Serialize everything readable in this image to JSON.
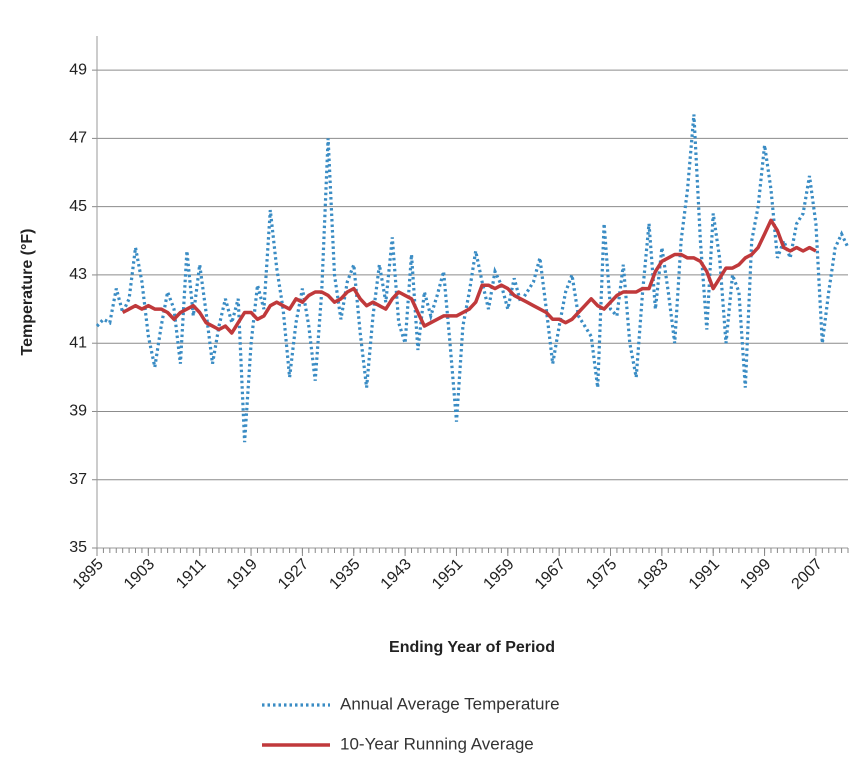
{
  "chart_data": {
    "type": "line",
    "y_label": "Temperature (°F)",
    "x_label": "Ending Year of Period",
    "x": [
      1895,
      1896,
      1897,
      1898,
      1899,
      1900,
      1901,
      1902,
      1903,
      1904,
      1905,
      1906,
      1907,
      1908,
      1909,
      1910,
      1911,
      1912,
      1913,
      1914,
      1915,
      1916,
      1917,
      1918,
      1919,
      1920,
      1921,
      1922,
      1923,
      1924,
      1925,
      1926,
      1927,
      1928,
      1929,
      1930,
      1931,
      1932,
      1933,
      1934,
      1935,
      1936,
      1937,
      1938,
      1939,
      1940,
      1941,
      1942,
      1943,
      1944,
      1945,
      1946,
      1947,
      1948,
      1949,
      1950,
      1951,
      1952,
      1953,
      1954,
      1955,
      1956,
      1957,
      1958,
      1959,
      1960,
      1961,
      1962,
      1963,
      1964,
      1965,
      1966,
      1967,
      1968,
      1969,
      1970,
      1971,
      1972,
      1973,
      1974,
      1975,
      1976,
      1977,
      1978,
      1979,
      1980,
      1981,
      1982,
      1983,
      1984,
      1985,
      1986,
      1987,
      1988,
      1989,
      1990,
      1991,
      1992,
      1993,
      1994,
      1995,
      1996,
      1997,
      1998,
      1999,
      2000,
      2001,
      2002,
      2003,
      2004,
      2005,
      2006,
      2007,
      2008,
      2009,
      2010,
      2011,
      2012
    ],
    "series": [
      {
        "name": "Annual Average Temperature",
        "color": "#3a8cc4",
        "style": "dotted",
        "values": [
          41.5,
          41.7,
          41.6,
          42.6,
          41.9,
          42.3,
          43.8,
          42.8,
          41.2,
          40.3,
          41.5,
          42.5,
          42.0,
          40.4,
          43.7,
          41.8,
          43.3,
          41.9,
          40.4,
          41.5,
          42.3,
          41.6,
          42.3,
          38.1,
          41.0,
          42.7,
          42.0,
          44.9,
          43.2,
          42.0,
          40.0,
          41.6,
          42.6,
          41.5,
          39.9,
          42.5,
          47.0,
          43.0,
          41.7,
          42.8,
          43.3,
          41.3,
          39.7,
          41.8,
          43.3,
          42.2,
          44.1,
          41.6,
          41.0,
          43.6,
          40.8,
          42.5,
          41.8,
          42.4,
          43.1,
          41.0,
          38.7,
          41.5,
          42.5,
          43.7,
          42.8,
          42.0,
          43.1,
          42.7,
          42.0,
          42.9,
          42.2,
          42.5,
          42.8,
          43.5,
          42.0,
          40.4,
          41.5,
          42.5,
          43.0,
          41.8,
          41.5,
          41.2,
          39.7,
          44.5,
          42.0,
          41.8,
          43.3,
          41.0,
          40.0,
          42.5,
          44.5,
          42.0,
          43.8,
          42.5,
          41.0,
          44.0,
          45.5,
          47.7,
          44.0,
          41.4,
          44.8,
          43.5,
          41.0,
          43.0,
          42.5,
          39.7,
          44.0,
          45.0,
          46.8,
          45.5,
          43.5,
          44.0,
          43.5,
          44.5,
          44.8,
          45.9,
          44.5,
          41.0,
          42.5,
          43.8,
          44.2,
          43.8
        ]
      },
      {
        "name": "10-Year Running Average",
        "color": "#c0393b",
        "style": "solid",
        "values": [
          null,
          null,
          null,
          null,
          41.9,
          42.0,
          42.1,
          42.0,
          42.1,
          42.0,
          42.0,
          41.9,
          41.7,
          41.9,
          42.0,
          42.1,
          41.9,
          41.6,
          41.5,
          41.4,
          41.5,
          41.3,
          41.6,
          41.9,
          41.9,
          41.7,
          41.8,
          42.1,
          42.2,
          42.1,
          42.0,
          42.3,
          42.2,
          42.4,
          42.5,
          42.5,
          42.4,
          42.2,
          42.3,
          42.5,
          42.6,
          42.3,
          42.1,
          42.2,
          42.1,
          42.0,
          42.3,
          42.5,
          42.4,
          42.3,
          41.9,
          41.5,
          41.6,
          41.7,
          41.8,
          41.8,
          41.8,
          41.9,
          42.0,
          42.2,
          42.7,
          42.7,
          42.6,
          42.7,
          42.6,
          42.4,
          42.3,
          42.2,
          42.1,
          42.0,
          41.9,
          41.7,
          41.7,
          41.6,
          41.7,
          41.9,
          42.1,
          42.3,
          42.1,
          42.0,
          42.2,
          42.4,
          42.5,
          42.5,
          42.5,
          42.6,
          42.6,
          43.1,
          43.4,
          43.5,
          43.6,
          43.6,
          43.5,
          43.5,
          43.4,
          43.1,
          42.6,
          42.9,
          43.2,
          43.2,
          43.3,
          43.5,
          43.6,
          43.8,
          44.2,
          44.6,
          44.3,
          43.8,
          43.7,
          43.8,
          43.7,
          43.8,
          43.7,
          null,
          null,
          null,
          null,
          null
        ]
      }
    ],
    "xlim": [
      1895,
      2012
    ],
    "xticks": [
      1895,
      1903,
      1911,
      1919,
      1927,
      1935,
      1943,
      1951,
      1959,
      1967,
      1975,
      1983,
      1991,
      1999,
      2007
    ],
    "ylim": [
      35,
      50
    ],
    "yticks": [
      35,
      37,
      39,
      41,
      43,
      45,
      47,
      49
    ],
    "grid": true
  }
}
